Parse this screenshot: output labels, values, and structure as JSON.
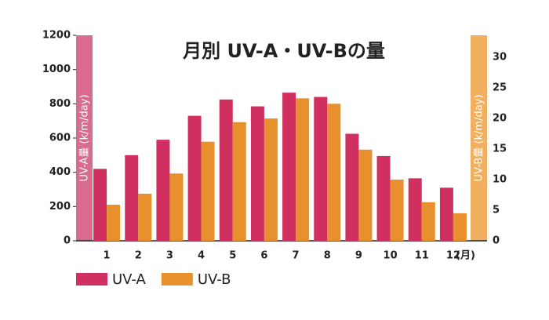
{
  "chart_data": {
    "type": "bar",
    "title": "月別 UV-A・UV-Bの量",
    "categories": [
      "1",
      "2",
      "3",
      "4",
      "5",
      "6",
      "7",
      "8",
      "9",
      "10",
      "11",
      "12"
    ],
    "x_label": "(月)",
    "y_label": "UV-A量 (k/m/day)",
    "y2_label": "UV-B量 (k/m/day)",
    "ylim": [
      0,
      1200
    ],
    "yticks": [
      0,
      200,
      400,
      600,
      800,
      1000,
      1200
    ],
    "y2lim": [
      0,
      33.6
    ],
    "y2ticks": [
      0,
      5,
      10,
      15,
      20,
      25,
      30
    ],
    "y_axis_color": "#d96b8e",
    "y2_axis_color": "#f0b060",
    "series": [
      {
        "name": "UV-A",
        "color": "#d0305f",
        "values": [
          420,
          500,
          590,
          730,
          825,
          785,
          865,
          840,
          625,
          495,
          365,
          310
        ]
      },
      {
        "name": "UV-B",
        "color": "#e8902e",
        "axis": "y2",
        "values": [
          5.9,
          7.7,
          11.0,
          16.2,
          19.4,
          20.0,
          23.3,
          22.4,
          14.9,
          10.0,
          6.3,
          4.5
        ]
      }
    ]
  }
}
